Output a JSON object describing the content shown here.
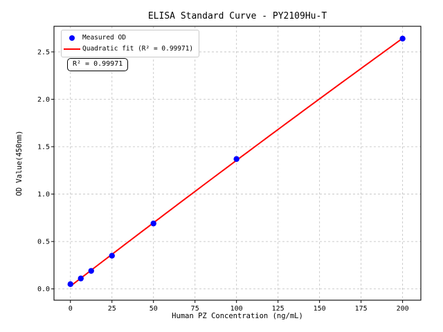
{
  "figure": {
    "background": "#ffffff"
  },
  "chart_data": {
    "type": "scatter",
    "title": "ELISA Standard Curve - PY2109Hu-T",
    "xlabel": "Human PZ Concentration (ng/mL)",
    "ylabel": "OD Value(450nm)",
    "xlim": [
      -9.9,
      211
    ],
    "ylim": [
      -0.119,
      2.77
    ],
    "x_ticks": [
      0,
      25,
      50,
      75,
      100,
      125,
      150,
      175,
      200
    ],
    "y_ticks": [
      0.0,
      0.5,
      1.0,
      1.5,
      2.0,
      2.5
    ],
    "grid": true,
    "grid_style": "dashed",
    "series": [
      {
        "name": "Measured OD",
        "type": "scatter",
        "color": "#0000ff",
        "x": [
          0,
          6.25,
          12.5,
          25,
          50,
          100,
          200
        ],
        "y": [
          0.05,
          0.11,
          0.19,
          0.35,
          0.69,
          1.37,
          2.64
        ]
      },
      {
        "name": "Quadratic fit",
        "type": "line",
        "color": "#ff0000",
        "fit": "quadratic",
        "r_squared": 0.99971
      }
    ],
    "legend": {
      "location": "upper left",
      "entries": [
        {
          "label": "Measured OD",
          "marker": "dot",
          "color": "#0000ff"
        },
        {
          "label": "Quadratic fit (R² = 0.99971)",
          "marker": "line",
          "color": "#ff0000"
        }
      ]
    },
    "annotation": {
      "text": "R² = 0.99971"
    }
  }
}
